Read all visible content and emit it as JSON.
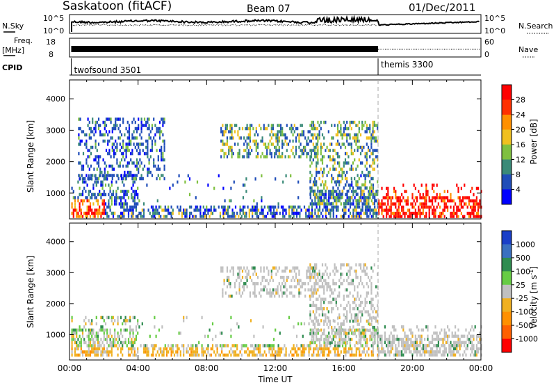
{
  "header": {
    "station": "Saskatoon (fitACF)",
    "beam": "Beam 07",
    "date": "01/Dec/2011"
  },
  "strip": {
    "nsky_label": "N.Sky",
    "nsky_ticks": [
      "10^5",
      "10^0"
    ],
    "nsearch_label": "N.Search",
    "nsearch_ticks": [
      "10^5",
      "10^0"
    ],
    "freq_label": "Freq.",
    "freq_unit": "[MHz]",
    "freq_ticks": [
      "18",
      "8"
    ],
    "nave_label": "Nave",
    "nave_ticks": [
      "60",
      "0"
    ],
    "cpid_label": "CPID",
    "cpid_segments": [
      {
        "name": "twofsound 3501",
        "start_hour": 0.1,
        "end_hour": 18.0
      },
      {
        "name": "themis 3300",
        "start_hour": 18.0,
        "end_hour": 24.0
      }
    ]
  },
  "chart_data": [
    {
      "type": "heatmap",
      "title": "",
      "ylabel": "Slant Range [km]",
      "xlabel": "",
      "xlim": [
        0,
        24
      ],
      "ylim": [
        180,
        4600
      ],
      "yticks": [
        "1000",
        "2000",
        "3000",
        "4000"
      ],
      "colorbar": {
        "label": "Power [dB]",
        "ticks": [
          "4",
          "8",
          "12",
          "16",
          "20",
          "24",
          "28"
        ],
        "colors": [
          "#0000ff",
          "#1f4db8",
          "#3a8a78",
          "#7fc040",
          "#f0c020",
          "#ff9000",
          "#ff3000",
          "#ff0000"
        ]
      },
      "echo_regions": [
        {
          "t0": 0.1,
          "t1": 18.0,
          "r0": 300,
          "r1": 1600,
          "level": "mixed"
        },
        {
          "t0": 0.5,
          "t1": 5.5,
          "r0": 1500,
          "r1": 3400,
          "level": "low"
        },
        {
          "t0": 8.8,
          "t1": 14.5,
          "r0": 2200,
          "r1": 3200,
          "level": "medium"
        },
        {
          "t0": 14.0,
          "t1": 18.0,
          "r0": 700,
          "r1": 3300,
          "level": "medium"
        },
        {
          "t0": 18.0,
          "t1": 24.0,
          "r0": 300,
          "r1": 1300,
          "level": "high"
        }
      ]
    },
    {
      "type": "heatmap",
      "title": "",
      "ylabel": "Slant Range [km]",
      "xlabel": "Time UT",
      "xlim": [
        0,
        24
      ],
      "ylim": [
        180,
        4600
      ],
      "xticks": [
        "00:00",
        "04:00",
        "08:00",
        "12:00",
        "16:00",
        "20:00",
        "00:00"
      ],
      "yticks": [
        "1000",
        "2000",
        "3000",
        "4000"
      ],
      "colorbar": {
        "label": "Velocity [m s",
        "label_exp": "-1",
        "label_end": "]",
        "ticks": [
          "1000",
          "500",
          "100",
          "25",
          "-25",
          "-100",
          "-500",
          "-1000"
        ],
        "colors": [
          "#1a3fc8",
          "#3a70c0",
          "#2f8c50",
          "#66cc44",
          "#c0c0c0",
          "#f0b020",
          "#ff9000",
          "#ff6000",
          "#ff0000"
        ]
      },
      "echo_regions": [
        {
          "t0": 0.1,
          "t1": 18.0,
          "r0": 300,
          "r1": 1600,
          "level": "mixed"
        },
        {
          "t0": 8.8,
          "t1": 14.5,
          "r0": 2200,
          "r1": 3200,
          "level": "grey"
        },
        {
          "t0": 14.0,
          "t1": 18.0,
          "r0": 700,
          "r1": 3300,
          "level": "grey"
        },
        {
          "t0": 18.0,
          "t1": 24.0,
          "r0": 300,
          "r1": 1300,
          "level": "grey"
        }
      ]
    }
  ]
}
